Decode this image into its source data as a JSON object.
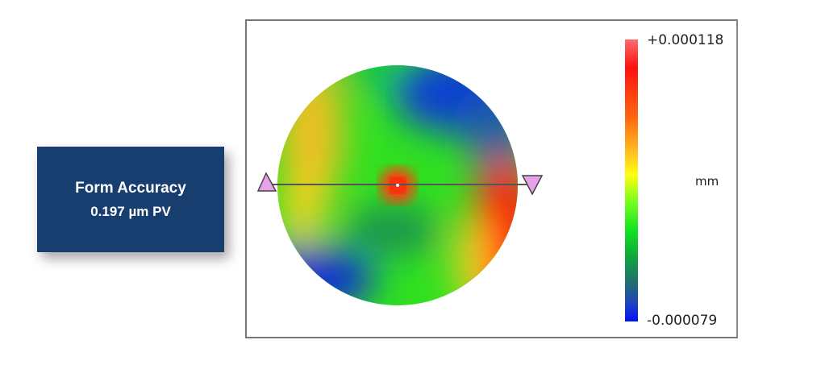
{
  "callout": {
    "title": "Form Accuracy",
    "value": "0.197 µm PV",
    "background": "#173e6f"
  },
  "colorbar": {
    "max_label": "+0.000118",
    "min_label": "-0.000079",
    "unit": "mm",
    "colors": [
      "#ff1010",
      "#ffc020",
      "#ffff10",
      "#10e020",
      "#207070",
      "#0010ff"
    ]
  },
  "map": {
    "marker_start_icon": "triangle-up-icon",
    "marker_end_icon": "triangle-down-icon",
    "marker_color": "#e8a0e8"
  }
}
